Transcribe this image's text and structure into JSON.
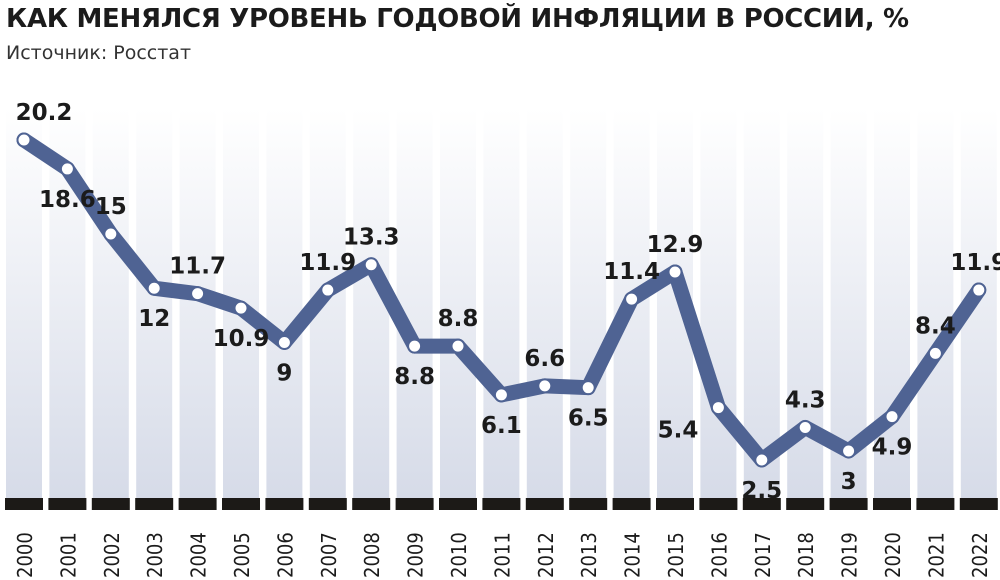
{
  "title": "КАК МЕНЯЛСЯ УРОВЕНЬ ГОДОВОЙ ИНФЛЯЦИИ В РОССИИ, %",
  "subtitle": "Источник: Росстат",
  "colors": {
    "line": "#4f6393",
    "marker": "#ffffff",
    "column_top": "#ffffff",
    "column_bottom": "#d6dbe8",
    "axis_bar": "#1c1a17",
    "text": "#1b1b1b"
  },
  "chart_data": {
    "type": "line",
    "title": "КАК МЕНЯЛСЯ УРОВЕНЬ ГОДОВОЙ ИНФЛЯЦИИ В РОССИИ, %",
    "subtitle": "Источник: Росстат",
    "xlabel": "",
    "ylabel": "",
    "categories": [
      "2000",
      "2001",
      "2002",
      "2003",
      "2004",
      "2005",
      "2006",
      "2007",
      "2008",
      "2009",
      "2010",
      "2011",
      "2012",
      "2013",
      "2014",
      "2015",
      "2016",
      "2017",
      "2018",
      "2019",
      "2020",
      "2021",
      "2022"
    ],
    "series": [
      {
        "values": [
          20.2,
          18.6,
          15,
          12,
          11.7,
          10.9,
          9,
          11.9,
          13.3,
          8.8,
          8.8,
          6.1,
          6.6,
          6.5,
          11.4,
          12.9,
          5.4,
          2.5,
          4.3,
          3,
          4.9,
          8.4,
          11.9
        ]
      }
    ],
    "data_labels": [
      "20.2",
      "18.6",
      "15",
      "12",
      "11.7",
      "10.9",
      "9",
      "11.9",
      "13.3",
      "8.8",
      "8.8",
      "6.1",
      "6.6",
      "6.5",
      "11.4",
      "12.9",
      "5.4",
      "2.5",
      "4.3",
      "3",
      "4.9",
      "8.4",
      "11.9"
    ],
    "label_positions": [
      "above",
      "below",
      "above",
      "below",
      "above",
      "below",
      "below",
      "above",
      "above",
      "below",
      "above",
      "below",
      "above",
      "below",
      "above",
      "above",
      "left",
      "below",
      "above",
      "below",
      "below",
      "above",
      "above"
    ],
    "grid": false,
    "legend": "none"
  }
}
